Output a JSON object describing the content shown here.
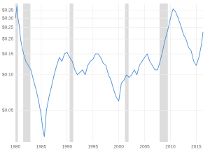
{
  "chart_data": {
    "type": "line",
    "x": [
      1980.0,
      1980.3,
      1980.5,
      1980.8,
      1981.0,
      1981.3,
      1981.6,
      1982.0,
      1982.5,
      1983.0,
      1983.5,
      1984.0,
      1984.5,
      1985.0,
      1985.3,
      1985.6,
      1986.0,
      1986.5,
      1987.0,
      1987.5,
      1988.0,
      1988.5,
      1989.0,
      1989.5,
      1990.0,
      1990.5,
      1991.0,
      1991.5,
      1992.0,
      1992.5,
      1993.0,
      1993.5,
      1994.0,
      1994.5,
      1995.0,
      1995.5,
      1996.0,
      1996.5,
      1997.0,
      1997.5,
      1998.0,
      1998.5,
      1999.0,
      1999.5,
      2000.0,
      2000.5,
      2001.0,
      2001.5,
      2002.0,
      2002.5,
      2003.0,
      2003.5,
      2004.0,
      2004.5,
      2005.0,
      2005.5,
      2006.0,
      2006.5,
      2007.0,
      2007.5,
      2008.0,
      2008.5,
      2009.0,
      2009.5,
      2010.0,
      2010.5,
      2011.0,
      2011.5,
      2012.0,
      2012.5,
      2013.0,
      2013.5,
      2014.0,
      2014.5,
      2015.0,
      2015.5,
      2016.0,
      2016.3
    ],
    "series": [
      {
        "color": "#4a8fd6",
        "values": [
          0.3,
          0.38,
          0.3,
          0.25,
          0.2,
          0.17,
          0.15,
          0.13,
          0.12,
          0.11,
          0.09,
          0.075,
          0.06,
          0.045,
          0.035,
          0.03,
          0.05,
          0.065,
          0.08,
          0.1,
          0.12,
          0.14,
          0.13,
          0.15,
          0.155,
          0.14,
          0.13,
          0.11,
          0.1,
          0.105,
          0.11,
          0.1,
          0.12,
          0.13,
          0.135,
          0.15,
          0.15,
          0.14,
          0.125,
          0.12,
          0.1,
          0.09,
          0.075,
          0.065,
          0.06,
          0.085,
          0.09,
          0.1,
          0.095,
          0.1,
          0.11,
          0.1,
          0.12,
          0.13,
          0.14,
          0.15,
          0.13,
          0.12,
          0.11,
          0.11,
          0.13,
          0.16,
          0.2,
          0.24,
          0.3,
          0.36,
          0.34,
          0.3,
          0.26,
          0.22,
          0.2,
          0.17,
          0.16,
          0.13,
          0.12,
          0.14,
          0.18,
          0.23
        ]
      }
    ],
    "shaded_ranges": [
      [
        1980.0,
        1980.5
      ],
      [
        1981.5,
        1982.9
      ],
      [
        1990.5,
        1991.2
      ],
      [
        2001.2,
        2001.9
      ],
      [
        2007.9,
        2009.5
      ]
    ],
    "shade_color": "#dddddd",
    "xlim": [
      1980,
      2016.3
    ],
    "xticks": [
      1980,
      1985,
      1990,
      1995,
      2000,
      2005,
      2010,
      2015
    ],
    "ylim": [
      0.027,
      0.4
    ],
    "yticks": [
      {
        "value": 0.05,
        "label": "$0.05"
      },
      {
        "value": 0.1,
        "label": "$0.10"
      },
      {
        "value": 0.15,
        "label": "$0.15"
      },
      {
        "value": 0.2,
        "label": "$0.20"
      },
      {
        "value": 0.25,
        "label": "$0.25"
      },
      {
        "value": 0.3,
        "label": "$0.30"
      },
      {
        "value": 0.35,
        "label": "$0.35"
      }
    ],
    "log_y": true,
    "grid": true
  }
}
